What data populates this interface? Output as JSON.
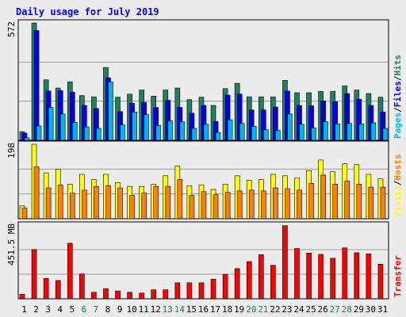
{
  "colors": {
    "title": "#0000ee",
    "pages": "#00b4f0",
    "files": "#0000ee",
    "hits": "#208060",
    "visits": "#ffff00",
    "hosts": "#ff8000",
    "transfer": "#ff0000",
    "weekend": "#208060",
    "axis": "#000000",
    "panel_bg": "#ececec",
    "grid": "#999999"
  },
  "chart_data": {
    "type": "bar",
    "title": "Daily usage for July 2019",
    "categories": [
      "1",
      "2",
      "3",
      "4",
      "5",
      "6",
      "7",
      "8",
      "9",
      "10",
      "11",
      "12",
      "13",
      "14",
      "15",
      "16",
      "17",
      "18",
      "19",
      "20",
      "21",
      "22",
      "23",
      "24",
      "25",
      "26",
      "27",
      "28",
      "29",
      "30",
      "31"
    ],
    "weekend_days": [
      "6",
      "7",
      "13",
      "14",
      "20",
      "21",
      "27",
      "28"
    ],
    "panels": [
      {
        "id": "hits_files_pages",
        "ymax_label": "572",
        "ylim": [
          0,
          572
        ],
        "side_labels": [
          {
            "text": "Pages",
            "color": "#00b4f0"
          },
          {
            "text": "/",
            "color": "#000000"
          },
          {
            "text": "Files",
            "color": "#0000ee"
          },
          {
            "text": "/",
            "color": "#000000"
          },
          {
            "text": "Hits",
            "color": "#208060"
          }
        ],
        "series": [
          {
            "name": "Hits",
            "color": "#208060",
            "values": [
              42,
              572,
              295,
              255,
              285,
              218,
              212,
              355,
              210,
              225,
              245,
              215,
              245,
              255,
              198,
              210,
              170,
              252,
              278,
              212,
              212,
              212,
              292,
              232,
              232,
              238,
              238,
              265,
              245,
              228,
              210
            ]
          },
          {
            "name": "Files",
            "color": "#0000ee",
            "values": [
              35,
              535,
              240,
              242,
              235,
              170,
              155,
              305,
              140,
              180,
              185,
              160,
              195,
              160,
              132,
              170,
              92,
              220,
              225,
              148,
              148,
              162,
              240,
              170,
              168,
              192,
              188,
              228,
              200,
              170,
              138
            ]
          },
          {
            "name": "Pages",
            "color": "#00b4f0",
            "values": [
              12,
              70,
              160,
              128,
              88,
              65,
              58,
              285,
              75,
              138,
              125,
              72,
              95,
              90,
              58,
              78,
              38,
              100,
              82,
              68,
              52,
              48,
              128,
              78,
              60,
              90,
              80,
              82,
              80,
              85,
              58
            ]
          }
        ]
      },
      {
        "id": "visits_hosts",
        "ymax_label": "198",
        "ylim": [
          0,
          198
        ],
        "side_labels": [
          {
            "text": "Visits",
            "color": "#ffff00"
          },
          {
            "text": "/",
            "color": "#000000"
          },
          {
            "text": "Hosts",
            "color": "#ff8000"
          }
        ],
        "series": [
          {
            "name": "Visits",
            "color": "#ffff00",
            "values": [
              34,
              198,
              122,
              132,
              92,
              118,
              104,
              118,
              96,
              86,
              86,
              92,
              114,
              140,
              88,
              90,
              78,
              92,
              114,
              102,
              104,
              118,
              114,
              108,
              128,
              156,
              125,
              146,
              144,
              118,
              106
            ]
          },
          {
            "name": "Hosts",
            "color": "#ff8000",
            "values": [
              28,
              138,
              82,
              90,
              68,
              76,
              86,
              88,
              82,
              62,
              68,
              86,
              86,
              104,
              62,
              72,
              64,
              70,
              74,
              76,
              74,
              82,
              80,
              76,
              94,
              116,
              92,
              100,
              92,
              84,
              84
            ]
          }
        ]
      },
      {
        "id": "transfer",
        "ymax_label": "451.5 MB",
        "ylim": [
          0,
          451.5
        ],
        "side_labels": [
          {
            "text": "Transfer",
            "color": "#ff0000"
          }
        ],
        "series": [
          {
            "name": "Transfer",
            "color": "#ff0000",
            "values": [
              28,
              302,
              125,
              112,
              340,
              152,
              40,
              62,
              48,
              40,
              35,
              55,
              55,
              98,
              98,
              98,
              120,
              150,
              185,
              228,
              270,
              205,
              448,
              308,
              280,
              272,
              248,
              312,
              282,
              275,
              212
            ]
          }
        ]
      }
    ]
  }
}
